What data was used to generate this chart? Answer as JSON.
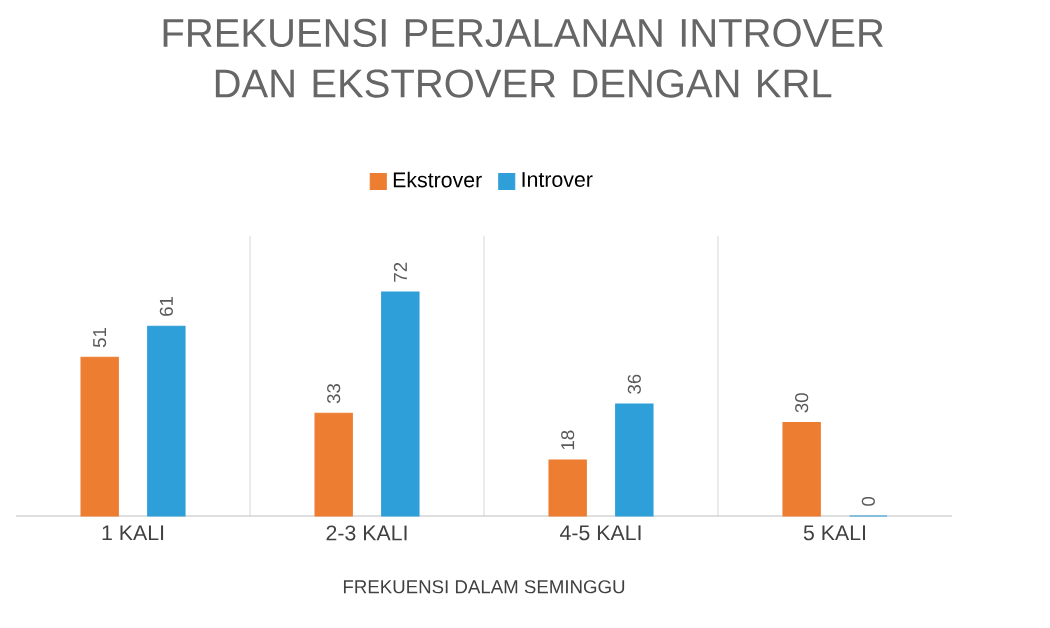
{
  "chart_data": {
    "type": "bar",
    "title": "FREKUENSI PERJALANAN INTROVER\nDAN EKSTROVER DENGAN KRL",
    "xlabel": "FREKUENSI DALAM SEMINGGU",
    "categories": [
      "1 KALI",
      "2-3 KALI",
      "4-5 KALI",
      "5 KALI"
    ],
    "series": [
      {
        "name": "Ekstrover",
        "color": "#ed7d31",
        "values": [
          51,
          33,
          18,
          30
        ]
      },
      {
        "name": "Introver",
        "color": "#2e9fd8",
        "values": [
          61,
          72,
          36,
          0
        ]
      }
    ],
    "data_labels": true,
    "grid": "x",
    "legend": "top"
  }
}
